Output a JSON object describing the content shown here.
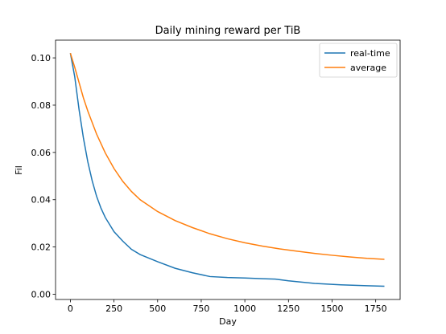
{
  "chart_data": {
    "type": "line",
    "title": "Daily mining reward per TiB",
    "xlabel": "Day",
    "ylabel": "Fil",
    "xlim": [
      -85,
      1890
    ],
    "ylim": [
      -0.0022,
      0.1075
    ],
    "xticks": [
      0,
      250,
      500,
      750,
      1000,
      1250,
      1500,
      1750
    ],
    "yticks": [
      0.0,
      0.02,
      0.04,
      0.06,
      0.08,
      0.1
    ],
    "ytick_labels": [
      "0.00",
      "0.02",
      "0.04",
      "0.06",
      "0.08",
      "0.10"
    ],
    "grid": false,
    "legend_position": "top-right",
    "series": [
      {
        "name": "real-time",
        "color": "#1f77b4",
        "x": [
          0,
          25,
          50,
          75,
          100,
          125,
          150,
          175,
          200,
          250,
          300,
          350,
          400,
          500,
          600,
          700,
          800,
          900,
          1000,
          1100,
          1175,
          1250,
          1400,
          1550,
          1700,
          1800
        ],
        "y": [
          0.102,
          0.092,
          0.078,
          0.066,
          0.056,
          0.048,
          0.0415,
          0.0365,
          0.0325,
          0.0265,
          0.0225,
          0.019,
          0.0168,
          0.0138,
          0.011,
          0.0091,
          0.0075,
          0.0071,
          0.0069,
          0.0066,
          0.0064,
          0.0057,
          0.0046,
          0.004,
          0.0036,
          0.0034
        ]
      },
      {
        "name": "average",
        "color": "#ff7f0e",
        "x": [
          0,
          25,
          50,
          75,
          100,
          150,
          200,
          250,
          300,
          350,
          400,
          500,
          600,
          700,
          800,
          900,
          1000,
          1100,
          1200,
          1300,
          1400,
          1500,
          1600,
          1700,
          1800
        ],
        "y": [
          0.102,
          0.096,
          0.0895,
          0.083,
          0.0775,
          0.0678,
          0.0598,
          0.0532,
          0.0478,
          0.0435,
          0.04,
          0.035,
          0.0312,
          0.0282,
          0.0256,
          0.0235,
          0.0218,
          0.0204,
          0.0192,
          0.0182,
          0.0173,
          0.0165,
          0.0158,
          0.0152,
          0.0148
        ]
      }
    ]
  }
}
